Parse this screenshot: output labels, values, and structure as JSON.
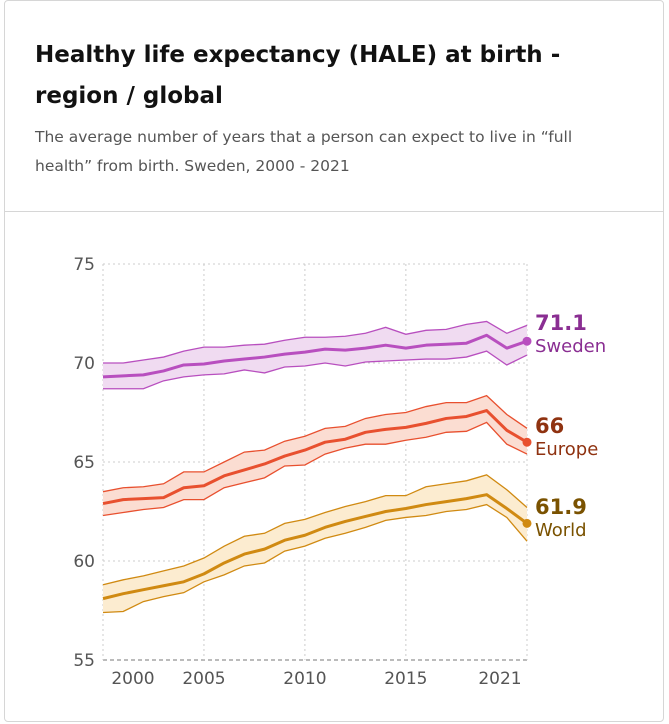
{
  "header": {
    "title": "Healthy life expectancy (HALE) at birth - region / global",
    "subtitle": "The average number of years that a person can expect to live in “full health” from birth. Sweden, 2000 - 2021"
  },
  "chart_data": {
    "type": "line",
    "title": "Healthy life expectancy (HALE) at birth - region / global",
    "xlabel": "",
    "ylabel": "",
    "xlim": [
      2000,
      2021
    ],
    "ylim": [
      55,
      75
    ],
    "xticks": [
      "2000",
      "2005",
      "2010",
      "2015",
      "2021"
    ],
    "yticks": [
      "55",
      "60",
      "65",
      "70",
      "75"
    ],
    "grid": true,
    "x": [
      2000,
      2001,
      2002,
      2003,
      2004,
      2005,
      2006,
      2007,
      2008,
      2009,
      2010,
      2011,
      2012,
      2013,
      2014,
      2015,
      2016,
      2017,
      2018,
      2019,
      2020,
      2021
    ],
    "series": [
      {
        "name": "Sweden",
        "end_label": "71.1",
        "color": "#b84fbf",
        "label_color": "#8a2e92",
        "band_color": "#f0dbf1",
        "values": [
          69.3,
          69.35,
          69.4,
          69.6,
          69.9,
          69.95,
          70.1,
          70.2,
          70.3,
          70.45,
          70.55,
          70.7,
          70.65,
          70.75,
          70.9,
          70.75,
          70.9,
          70.95,
          71.0,
          71.4,
          70.75,
          71.1
        ],
        "upper": [
          70.0,
          70.0,
          70.15,
          70.3,
          70.6,
          70.8,
          70.8,
          70.9,
          70.95,
          71.15,
          71.3,
          71.3,
          71.35,
          71.5,
          71.8,
          71.45,
          71.65,
          71.7,
          71.95,
          72.1,
          71.5,
          71.9
        ],
        "lower": [
          68.7,
          68.7,
          68.7,
          69.1,
          69.3,
          69.4,
          69.45,
          69.65,
          69.5,
          69.8,
          69.85,
          70.0,
          69.85,
          70.05,
          70.1,
          70.15,
          70.2,
          70.2,
          70.3,
          70.6,
          69.9,
          70.4
        ]
      },
      {
        "name": "Europe",
        "end_label": "66",
        "color": "#e8502f",
        "label_color": "#8f3210",
        "band_color": "#fbddd2",
        "values": [
          62.9,
          63.1,
          63.15,
          63.2,
          63.7,
          63.8,
          64.3,
          64.6,
          64.9,
          65.3,
          65.6,
          66.0,
          66.15,
          66.5,
          66.65,
          66.75,
          66.95,
          67.2,
          67.3,
          67.6,
          66.6,
          66.0
        ],
        "upper": [
          63.5,
          63.7,
          63.75,
          63.9,
          64.5,
          64.5,
          65.0,
          65.5,
          65.6,
          66.05,
          66.3,
          66.7,
          66.8,
          67.2,
          67.4,
          67.5,
          67.8,
          68.0,
          68.0,
          68.35,
          67.4,
          66.7
        ],
        "lower": [
          62.3,
          62.45,
          62.6,
          62.7,
          63.1,
          63.1,
          63.7,
          63.95,
          64.2,
          64.8,
          64.85,
          65.4,
          65.7,
          65.9,
          65.9,
          66.1,
          66.25,
          66.5,
          66.55,
          67.0,
          65.9,
          65.4
        ]
      },
      {
        "name": "World",
        "end_label": "61.9",
        "color": "#d08a12",
        "label_color": "#7a5200",
        "band_color": "#fcecd0",
        "values": [
          58.1,
          58.35,
          58.55,
          58.75,
          58.95,
          59.35,
          59.9,
          60.35,
          60.6,
          61.05,
          61.3,
          61.7,
          62.0,
          62.25,
          62.5,
          62.65,
          62.85,
          63.0,
          63.15,
          63.35,
          62.65,
          61.9
        ],
        "upper": [
          58.8,
          59.05,
          59.25,
          59.5,
          59.75,
          60.15,
          60.75,
          61.25,
          61.4,
          61.9,
          62.1,
          62.45,
          62.75,
          63.0,
          63.3,
          63.3,
          63.75,
          63.9,
          64.05,
          64.35,
          63.6,
          62.7
        ],
        "lower": [
          57.4,
          57.45,
          57.95,
          58.2,
          58.4,
          58.95,
          59.3,
          59.75,
          59.9,
          60.5,
          60.75,
          61.15,
          61.4,
          61.7,
          62.05,
          62.2,
          62.3,
          62.5,
          62.6,
          62.85,
          62.2,
          61.0
        ]
      }
    ]
  }
}
